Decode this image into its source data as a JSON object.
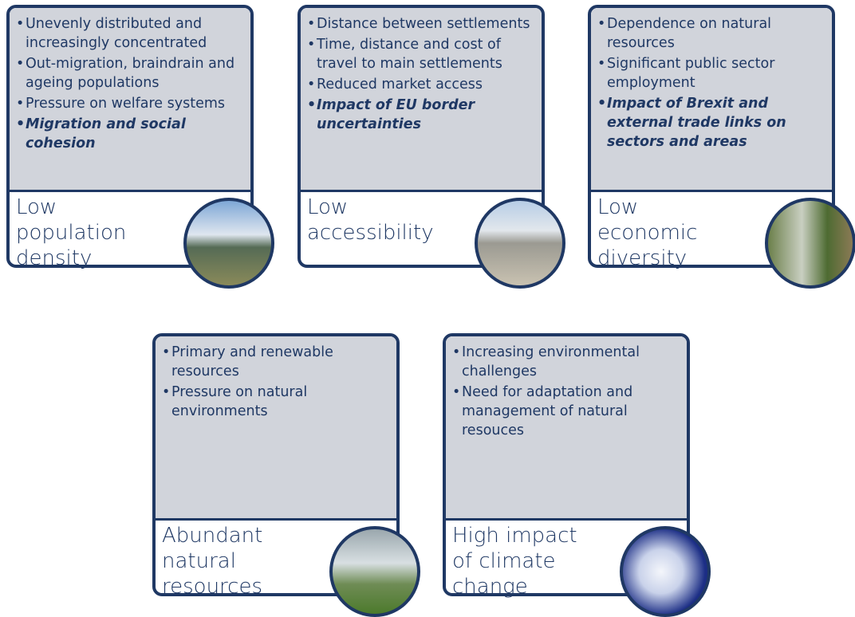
{
  "cards": [
    {
      "bullets": [
        "Unevenly distributed and increasingly concentrated",
        "Out-migration, braindrain and ageing populations",
        "Pressure on welfare systems"
      ],
      "emphasis_bullets": [
        "Migration and social cohesion"
      ],
      "title_lines": [
        "Low",
        "population",
        "density"
      ]
    },
    {
      "bullets": [
        "Distance between settlements",
        "Time, distance and cost of travel to main settlements",
        "Reduced market access"
      ],
      "emphasis_bullets": [
        "Impact of EU border uncertainties"
      ],
      "title_lines": [
        "Low",
        "accessibility"
      ]
    },
    {
      "bullets": [
        "Dependence on natural resources",
        "Significant public sector employment"
      ],
      "emphasis_bullets": [
        "Impact of Brexit and external trade links on sectors and areas"
      ],
      "title_lines": [
        "Low",
        "economic",
        "diversity"
      ]
    },
    {
      "bullets": [
        "Primary and renewable resources",
        "Pressure on natural environments"
      ],
      "emphasis_bullets": [],
      "title_lines": [
        "Abundant",
        "natural",
        "resources"
      ]
    },
    {
      "bullets": [
        "Increasing environmental challenges",
        "Need for adaptation and management of natural resouces"
      ],
      "emphasis_bullets": [],
      "title_lines": [
        "High impact",
        "of climate",
        "change"
      ]
    }
  ]
}
